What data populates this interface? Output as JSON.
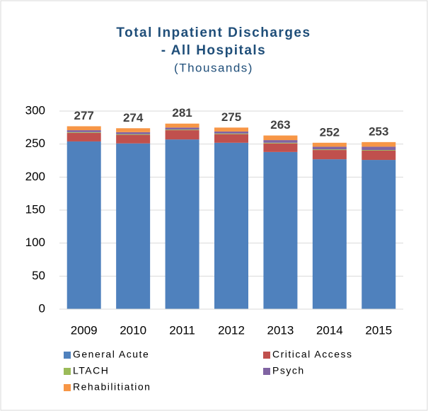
{
  "chart_data": {
    "type": "stacked_bar",
    "title": [
      "Total Inpatient Discharges",
      "- All Hospitals"
    ],
    "subtitle": "(Thousands)",
    "categories": [
      "2009",
      "2010",
      "2011",
      "2012",
      "2013",
      "2014",
      "2015"
    ],
    "series": [
      {
        "name": "General Acute",
        "color": "#4f81bd",
        "values": [
          254,
          251,
          257,
          252,
          238,
          227,
          226
        ]
      },
      {
        "name": "Critical Access",
        "color": "#c0504d",
        "values": [
          13,
          13,
          14,
          13,
          13,
          14,
          14
        ]
      },
      {
        "name": "LTACH",
        "color": "#9bbb59",
        "values": [
          1,
          1,
          1,
          1,
          1,
          1,
          1
        ]
      },
      {
        "name": "Psych",
        "color": "#8064a2",
        "values": [
          3,
          3,
          3,
          3,
          4,
          4,
          5
        ]
      },
      {
        "name": "Rehabilitiation",
        "color": "#f79646",
        "values": [
          6,
          6,
          6,
          6,
          7,
          6,
          7
        ]
      }
    ],
    "totals": [
      277,
      274,
      281,
      275,
      263,
      252,
      253
    ],
    "ylim": [
      0,
      300
    ],
    "yticks": [
      0,
      50,
      100,
      150,
      200,
      250,
      300
    ],
    "grid": true
  }
}
